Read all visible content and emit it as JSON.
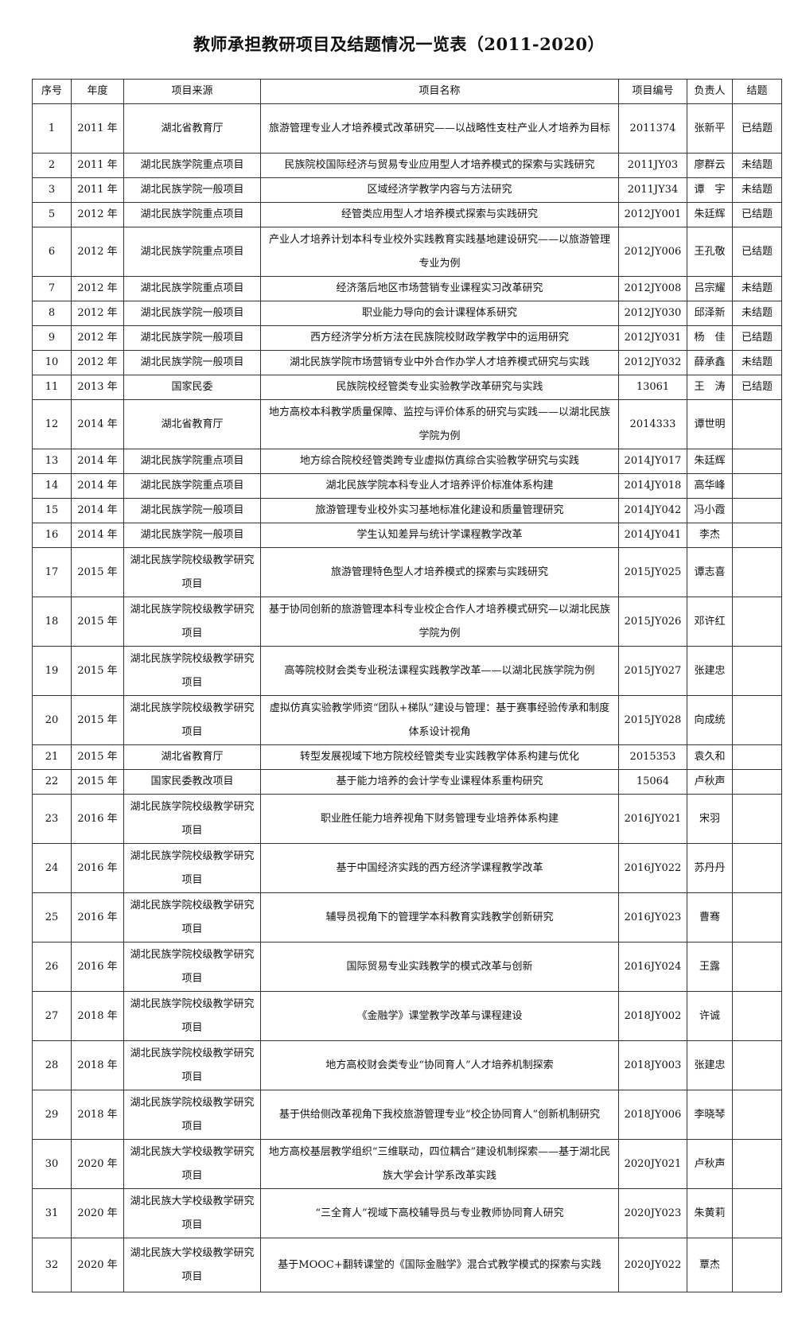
{
  "title": "教师承担教研项目及结题情况一览表（2011-2020）",
  "headers": [
    "序号",
    "年度",
    "项目来源",
    "项目名称",
    "项目编号",
    "负责人",
    "结题"
  ],
  "rows": [
    [
      "1",
      "2011 年",
      "湖北省教育厅",
      "旅游管理专业人才培养模式改革研究——以战略性支柱产业人才培养为目标",
      "2011374",
      "张新平",
      "已结题"
    ],
    [
      "2",
      "2011 年",
      "湖北民族学院重点项目",
      "民族院校国际经济与贸易专业应用型人才培养模式的探索与实践研究",
      "2011JY03",
      "廖群云",
      "未结题"
    ],
    [
      "3",
      "2011 年",
      "湖北民族学院一般项目",
      "区域经济学教学内容与方法研究",
      "2011JY34",
      "谭　宇",
      "未结题"
    ],
    [
      "5",
      "2012 年",
      "湖北民族学院重点项目",
      "经管类应用型人才培养模式探索与实践研究",
      "2012JY001",
      "朱廷辉",
      "已结题"
    ],
    [
      "6",
      "2012 年",
      "湖北民族学院重点项目",
      "产业人才培养计划本科专业校外实践教育实践基地建设研究——以旅游管理专业为例",
      "2012JY006",
      "王孔敬",
      "已结题"
    ],
    [
      "7",
      "2012 年",
      "湖北民族学院重点项目",
      "经济落后地区市场营销专业课程实习改革研究",
      "2012JY008",
      "吕宗耀",
      "未结题"
    ],
    [
      "8",
      "2012 年",
      "湖北民族学院一般项目",
      "职业能力导向的会计课程体系研究",
      "2012JY030",
      "邱泽新",
      "未结题"
    ],
    [
      "9",
      "2012 年",
      "湖北民族学院一般项目",
      "西方经济学分析方法在民族院校财政学教学中的运用研究",
      "2012JY031",
      "杨　佳",
      "已结题"
    ],
    [
      "10",
      "2012 年",
      "湖北民族学院一般项目",
      "湖北民族学院市场营销专业中外合作办学人才培养模式研究与实践",
      "2012JY032",
      "薛承鑫",
      "未结题"
    ],
    [
      "11",
      "2013 年",
      "国家民委",
      "民族院校经管类专业实验教学改革研究与实践",
      "13061",
      "王　涛",
      "已结题"
    ],
    [
      "12",
      "2014 年",
      "湖北省教育厅",
      "地方高校本科教学质量保障、监控与评价体系的研究与实践——以湖北民族学院为例",
      "2014333",
      "谭世明",
      ""
    ],
    [
      "13",
      "2014 年",
      "湖北民族学院重点项目",
      "地方综合院校经管类跨专业虚拟仿真综合实验教学研究与实践",
      "2014JY017",
      "朱廷辉",
      ""
    ],
    [
      "14",
      "2014 年",
      "湖北民族学院重点项目",
      "湖北民族学院本科专业人才培养评价标准体系构建",
      "2014JY018",
      "高华峰",
      ""
    ],
    [
      "15",
      "2014 年",
      "湖北民族学院一般项目",
      "旅游管理专业校外实习基地标准化建设和质量管理研究",
      "2014JY042",
      "冯小霞",
      ""
    ],
    [
      "16",
      "2014 年",
      "湖北民族学院一般项目",
      "学生认知差异与统计学课程教学改革",
      "2014JY041",
      "李杰",
      ""
    ],
    [
      "17",
      "2015 年",
      "湖北民族学院校级教学研究项目",
      "旅游管理特色型人才培养模式的探索与实践研究",
      "2015JY025",
      "谭志喜",
      ""
    ],
    [
      "18",
      "2015 年",
      "湖北民族学院校级教学研究项目",
      "基于协同创新的旅游管理本科专业校企合作人才培养模式研究—以湖北民族学院为例",
      "2015JY026",
      "邓许红",
      ""
    ],
    [
      "19",
      "2015 年",
      "湖北民族学院校级教学研究项目",
      "高等院校财会类专业税法课程实践教学改革——以湖北民族学院为例",
      "2015JY027",
      "张建忠",
      ""
    ],
    [
      "20",
      "2015 年",
      "湖北民族学院校级教学研究项目",
      "虚拟仿真实验教学师资“团队+梯队”建设与管理：基于赛事经验传承和制度体系设计视角",
      "2015JY028",
      "向成统",
      ""
    ],
    [
      "21",
      "2015 年",
      "湖北省教育厅",
      "转型发展视域下地方院校经管类专业实践教学体系构建与优化",
      "2015353",
      "袁久和",
      ""
    ],
    [
      "22",
      "2015 年",
      "国家民委教改项目",
      "基于能力培养的会计学专业课程体系重构研究",
      "15064",
      "卢秋声",
      ""
    ],
    [
      "23",
      "2016 年",
      "湖北民族学院校级教学研究项目",
      "职业胜任能力培养视角下财务管理专业培养体系构建",
      "2016JY021",
      "宋羽",
      ""
    ],
    [
      "24",
      "2016 年",
      "湖北民族学院校级教学研究项目",
      "基于中国经济实践的西方经济学课程教学改革",
      "2016JY022",
      "苏丹丹",
      ""
    ],
    [
      "25",
      "2016 年",
      "湖北民族学院校级教学研究项目",
      "辅导员视角下的管理学本科教育实践教学创新研究",
      "2016JY023",
      "曹骞",
      ""
    ],
    [
      "26",
      "2016 年",
      "湖北民族学院校级教学研究项目",
      "国际贸易专业实践教学的模式改革与创新",
      "2016JY024",
      "王露",
      ""
    ],
    [
      "27",
      "2018 年",
      "湖北民族学院校级教学研究项目",
      "《金融学》课堂教学改革与课程建设",
      "2018JY002",
      "许诚",
      ""
    ],
    [
      "28",
      "2018 年",
      "湖北民族学院校级教学研究项目",
      "地方高校财会类专业“协同育人”人才培养机制探索",
      "2018JY003",
      "张建忠",
      ""
    ],
    [
      "29",
      "2018 年",
      "湖北民族学院校级教学研究项目",
      "基于供给侧改革视角下我校旅游管理专业“校企协同育人”创新机制研究",
      "2018JY006",
      "李晓琴",
      ""
    ],
    [
      "30",
      "2020 年",
      "湖北民族大学校级教学研究项目",
      "地方高校基层教学组织“三维联动，四位耦合”建设机制探索——基于湖北民族大学会计学系改革实践",
      "2020JY021",
      "卢秋声",
      ""
    ],
    [
      "31",
      "2020 年",
      "湖北民族大学校级教学研究项目",
      "“三全育人”视域下高校辅导员与专业教师协同育人研究",
      "2020JY023",
      "朱黄莉",
      ""
    ],
    [
      "32",
      "2020 年",
      "湖北民族大学校级教学研究项目",
      "基于MOOC+翻转课堂的《国际金融学》混合式教学模式的探索与实践",
      "2020JY022",
      "覃杰",
      ""
    ]
  ]
}
